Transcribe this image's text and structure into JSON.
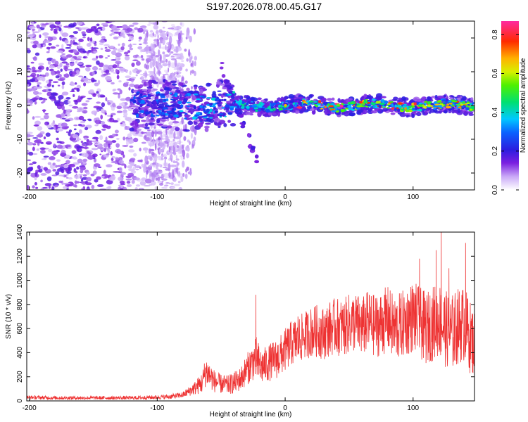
{
  "title": "S197.2026.078.00.45.G17",
  "colors": {
    "snr_line": "#ee3333",
    "spectro_ridge_peak": "#ff1010",
    "spectro_scatter": "#7a1fe0"
  },
  "chart_data": [
    {
      "type": "heatmap",
      "name": "spectrogram",
      "xlabel": "Height of straight line (km)",
      "ylabel": "Frequency (Hz)",
      "xlim": [
        -202,
        148
      ],
      "ylim": [
        -25,
        25
      ],
      "xticks": [
        -200,
        -100,
        0,
        100
      ],
      "yticks": [
        -20,
        -10,
        0,
        10,
        20
      ],
      "colorbar": {
        "label": "Normalized spectral amplitude",
        "range": [
          0.0,
          0.87
        ],
        "ticks": [
          0.0,
          0.2,
          0.4,
          0.6,
          0.8
        ],
        "colormap": "rainbow"
      },
      "features": [
        {
          "description": "diffuse noise",
          "x_range": [
            -202,
            -80
          ],
          "freq_range": [
            -25,
            25
          ],
          "amplitude": 0.15
        },
        {
          "description": "main signal ridge",
          "x_range": [
            -120,
            148
          ],
          "freq_center": 0,
          "amplitude_peak": 0.87
        },
        {
          "description": "secondary branch",
          "x_range": [
            -50,
            -22
          ],
          "freq_from": 12,
          "freq_to": -16
        }
      ]
    },
    {
      "type": "line",
      "name": "snr",
      "xlabel": "Height of straight line (km)",
      "ylabel": "SNR (10 * v/v)",
      "xlim": [
        -202,
        148
      ],
      "ylim": [
        0,
        1400
      ],
      "xticks": [
        -200,
        -100,
        0,
        100
      ],
      "yticks": [
        0,
        200,
        400,
        600,
        800,
        1000,
        1200,
        1400
      ],
      "series": [
        {
          "name": "SNR",
          "x": [
            -200,
            -180,
            -160,
            -140,
            -120,
            -100,
            -90,
            -80,
            -75,
            -70,
            -65,
            -62,
            -58,
            -55,
            -50,
            -45,
            -40,
            -35,
            -30,
            -25,
            -22,
            -20,
            -15,
            -10,
            -5,
            0,
            5,
            10,
            15,
            20,
            25,
            30,
            35,
            40,
            45,
            50,
            55,
            60,
            65,
            70,
            75,
            80,
            85,
            90,
            95,
            100,
            105,
            110,
            115,
            120,
            125,
            130,
            135,
            140,
            145,
            148
          ],
          "values": [
            30,
            25,
            25,
            25,
            25,
            30,
            35,
            50,
            80,
            110,
            150,
            250,
            200,
            160,
            140,
            130,
            150,
            180,
            260,
            330,
            350,
            280,
            300,
            330,
            360,
            420,
            480,
            500,
            540,
            570,
            580,
            560,
            600,
            620,
            600,
            640,
            650,
            610,
            660,
            620,
            640,
            680,
            600,
            620,
            660,
            700,
            650,
            600,
            640,
            680,
            600,
            560,
            620,
            640,
            520,
            480
          ],
          "spread": [
            15,
            15,
            15,
            15,
            15,
            18,
            20,
            25,
            40,
            60,
            90,
            130,
            110,
            90,
            80,
            80,
            90,
            100,
            130,
            160,
            200,
            160,
            150,
            160,
            170,
            180,
            190,
            200,
            200,
            210,
            220,
            220,
            230,
            240,
            240,
            250,
            250,
            250,
            260,
            260,
            270,
            280,
            280,
            280,
            290,
            300,
            300,
            300,
            310,
            320,
            320,
            320,
            320,
            320,
            300,
            280
          ],
          "peaks": [
            {
              "x": -23,
              "y": 880
            },
            {
              "x": 10,
              "y": 700
            },
            {
              "x": 105,
              "y": 1180
            },
            {
              "x": 118,
              "y": 1250
            },
            {
              "x": 122,
              "y": 1400
            },
            {
              "x": 128,
              "y": 1100
            },
            {
              "x": 141,
              "y": 1310
            },
            {
              "x": 146,
              "y": 700
            }
          ]
        }
      ]
    }
  ]
}
